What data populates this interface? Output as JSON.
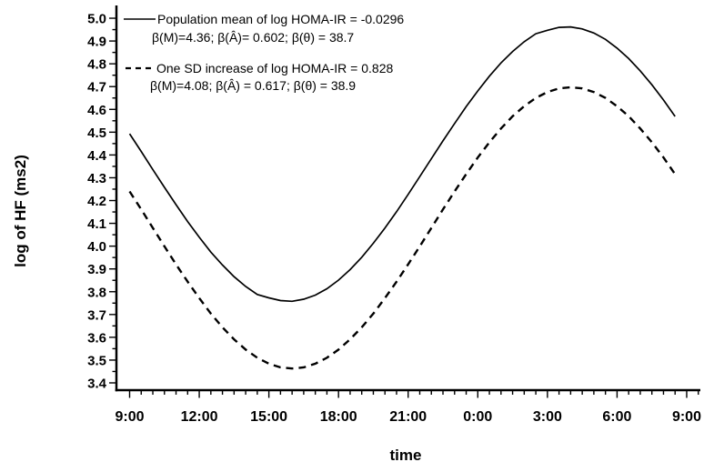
{
  "chart_data": {
    "type": "line",
    "title": "",
    "xlabel": "time",
    "ylabel": "log of HF (ms2)",
    "ylim": [
      3.4,
      5.0
    ],
    "y_major_step": 0.1,
    "y_minor_step": 0.05,
    "x_tick_labels": [
      "9:00",
      "12:00",
      "15:00",
      "18:00",
      "21:00",
      "0:00",
      "3:00",
      "6:00",
      "9:00"
    ],
    "x_major_tick_hours": [
      0,
      3,
      6,
      9,
      12,
      15,
      18,
      21,
      24
    ],
    "x_minor_step_hours": 0.5,
    "x_axis_span_hours": [
      0,
      24.5
    ],
    "grid": "off",
    "legend_position": "top-left",
    "background_color": "#ffffff",
    "line_color": "#000000",
    "x_hours_from_start": [
      0,
      0.5,
      1,
      1.5,
      2,
      2.5,
      3,
      3.5,
      4,
      4.5,
      5,
      5.5,
      6,
      6.5,
      7,
      7.5,
      8,
      8.5,
      9,
      9.5,
      10,
      10.5,
      11,
      11.5,
      12,
      12.5,
      13,
      13.5,
      14,
      14.5,
      15,
      15.5,
      16,
      16.5,
      17,
      17.5,
      18,
      18.5,
      19,
      19.5,
      20,
      20.5,
      21,
      21.5,
      22,
      22.5,
      23,
      23.5
    ],
    "series": [
      {
        "name": "Population mean of log HOMA-IR = -0.0296",
        "params_label": "β(M)=4.36; β(Â)= 0.602; β(θ) = 38.7",
        "style": "solid",
        "mesor": 4.36,
        "amplitude": 0.602,
        "acrophase": 38.7,
        "values": [
          4.493,
          4.415,
          4.336,
          4.258,
          4.182,
          4.108,
          4.039,
          3.974,
          3.917,
          3.866,
          3.823,
          3.788,
          3.773,
          3.761,
          3.758,
          3.767,
          3.785,
          3.813,
          3.851,
          3.897,
          3.951,
          4.013,
          4.079,
          4.151,
          4.227,
          4.305,
          4.384,
          4.462,
          4.538,
          4.612,
          4.681,
          4.746,
          4.804,
          4.854,
          4.897,
          4.932,
          4.947,
          4.96,
          4.962,
          4.953,
          4.935,
          4.907,
          4.869,
          4.823,
          4.769,
          4.708,
          4.641,
          4.569
        ]
      },
      {
        "name": "One SD increase of log HOMA-IR = 0.828",
        "params_label": "β(M)=4.08; β(Â) = 0.617; β(θ) = 38.9",
        "style": "dashed",
        "mesor": 4.08,
        "amplitude": 0.617,
        "acrophase": 38.9,
        "values": [
          4.24,
          4.161,
          4.08,
          3.999,
          3.92,
          3.844,
          3.772,
          3.704,
          3.644,
          3.591,
          3.546,
          3.51,
          3.484,
          3.468,
          3.463,
          3.468,
          3.484,
          3.51,
          3.546,
          3.591,
          3.644,
          3.704,
          3.772,
          3.844,
          3.92,
          3.999,
          4.08,
          4.161,
          4.24,
          4.316,
          4.389,
          4.456,
          4.516,
          4.57,
          4.614,
          4.65,
          4.676,
          4.692,
          4.697,
          4.692,
          4.676,
          4.65,
          4.614,
          4.57,
          4.516,
          4.456,
          4.389,
          4.316
        ]
      }
    ]
  }
}
